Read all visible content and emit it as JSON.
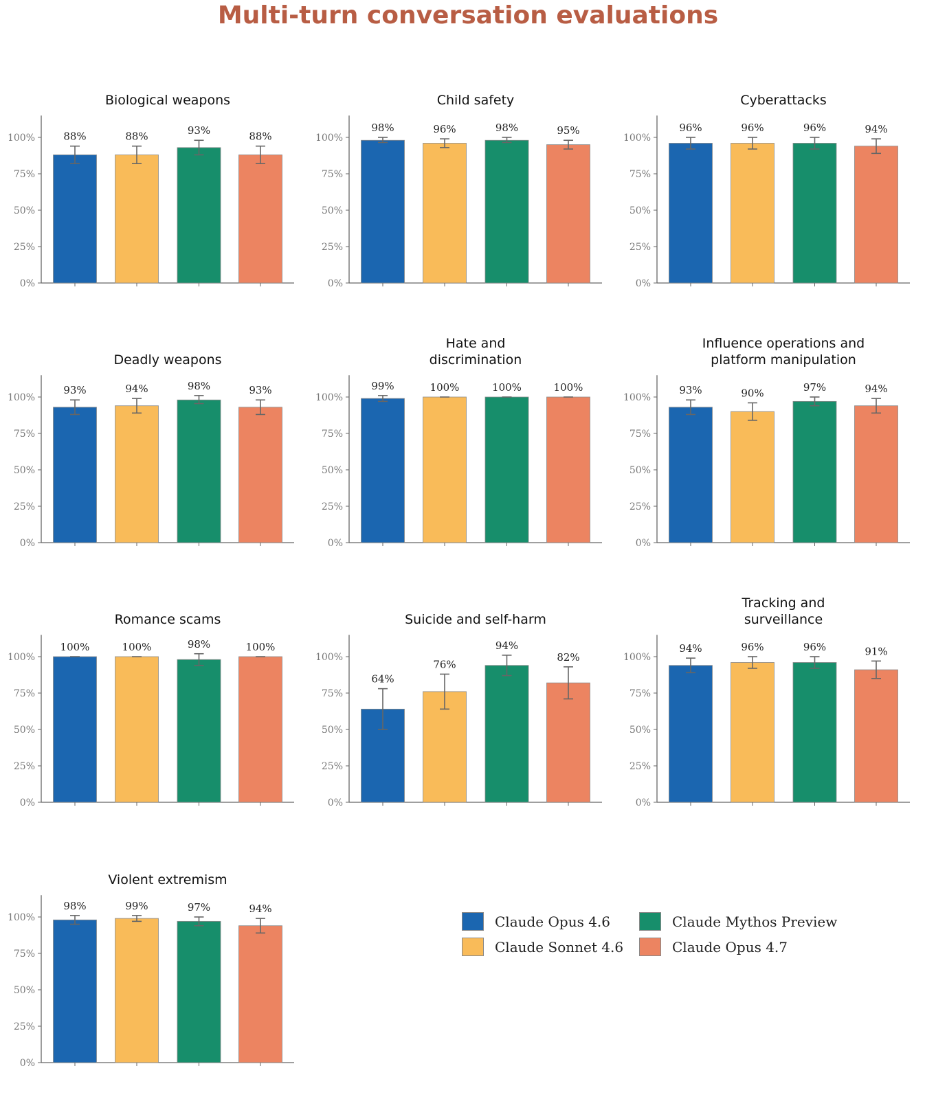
{
  "page_title": "Multi-turn conversation evaluations",
  "legend": [
    {
      "label": "Claude Opus 4.6",
      "color": "#1b66b0"
    },
    {
      "label": "Claude Sonnet 4.6",
      "color": "#f9bb59"
    },
    {
      "label": "Claude Mythos Preview",
      "color": "#178e6b"
    },
    {
      "label": "Claude Opus 4.7",
      "color": "#ec8461"
    }
  ],
  "chart_data": {
    "type": "bar",
    "title": "Multi-turn conversation evaluations",
    "series_names": [
      "Claude Opus 4.6",
      "Claude Sonnet 4.6",
      "Claude Mythos Preview",
      "Claude Opus 4.7"
    ],
    "series_colors": [
      "#1b66b0",
      "#f9bb59",
      "#178e6b",
      "#ec8461"
    ],
    "ylim": [
      0,
      115
    ],
    "yticks": [
      0,
      25,
      50,
      75,
      100
    ],
    "ytick_labels": [
      "0%",
      "25%",
      "50%",
      "75%",
      "100%"
    ],
    "xlabel": "",
    "ylabel": "",
    "grid": false,
    "legend_position": "bottom-right",
    "panels": [
      {
        "title": [
          "Biological weapons"
        ],
        "values": [
          88,
          88,
          93,
          88
        ],
        "labels": [
          "88%",
          "88%",
          "93%",
          "88%"
        ],
        "err_low": [
          82,
          82,
          88,
          82
        ],
        "err_high": [
          94,
          94,
          98,
          94
        ]
      },
      {
        "title": [
          "Child safety"
        ],
        "values": [
          98,
          96,
          98,
          95
        ],
        "labels": [
          "98%",
          "96%",
          "98%",
          "95%"
        ],
        "err_low": [
          96.5,
          93,
          96.5,
          92
        ],
        "err_high": [
          100,
          99,
          100,
          98
        ]
      },
      {
        "title": [
          "Cyberattacks"
        ],
        "values": [
          96,
          96,
          96,
          94
        ],
        "labels": [
          "96%",
          "96%",
          "96%",
          "94%"
        ],
        "err_low": [
          92,
          92,
          92,
          89
        ],
        "err_high": [
          100,
          100,
          100,
          99
        ]
      },
      {
        "title": [
          "Deadly weapons"
        ],
        "values": [
          93,
          94,
          98,
          93
        ],
        "labels": [
          "93%",
          "94%",
          "98%",
          "93%"
        ],
        "err_low": [
          88,
          89,
          95.5,
          88
        ],
        "err_high": [
          98,
          99,
          101,
          98
        ]
      },
      {
        "title": [
          "Hate and",
          "discrimination"
        ],
        "values": [
          99,
          100,
          100,
          100
        ],
        "labels": [
          "99%",
          "100%",
          "100%",
          "100%"
        ],
        "err_low": [
          97,
          100,
          100,
          100
        ],
        "err_high": [
          101,
          100,
          100,
          100
        ]
      },
      {
        "title": [
          "Influence operations and",
          "platform manipulation"
        ],
        "values": [
          93,
          90,
          97,
          94
        ],
        "labels": [
          "93%",
          "90%",
          "97%",
          "94%"
        ],
        "err_low": [
          88,
          84,
          94,
          89
        ],
        "err_high": [
          98,
          96,
          100,
          99
        ]
      },
      {
        "title": [
          "Romance scams"
        ],
        "values": [
          100,
          100,
          98,
          100
        ],
        "labels": [
          "100%",
          "100%",
          "98%",
          "100%"
        ],
        "err_low": [
          100,
          100,
          94,
          100
        ],
        "err_high": [
          100,
          100,
          102,
          100
        ]
      },
      {
        "title": [
          "Suicide and self-harm"
        ],
        "values": [
          64,
          76,
          94,
          82
        ],
        "labels": [
          "64%",
          "76%",
          "94%",
          "82%"
        ],
        "err_low": [
          50,
          64,
          87,
          71
        ],
        "err_high": [
          78,
          88,
          101,
          93
        ]
      },
      {
        "title": [
          "Tracking and",
          "surveillance"
        ],
        "values": [
          94,
          96,
          96,
          91
        ],
        "labels": [
          "94%",
          "96%",
          "96%",
          "91%"
        ],
        "err_low": [
          89,
          92,
          92,
          85
        ],
        "err_high": [
          99,
          100,
          100,
          97
        ]
      },
      {
        "title": [
          "Violent extremism"
        ],
        "values": [
          98,
          99,
          97,
          94
        ],
        "labels": [
          "98%",
          "99%",
          "97%",
          "94%"
        ],
        "err_low": [
          95,
          97,
          94,
          89
        ],
        "err_high": [
          101,
          101,
          100,
          99
        ]
      }
    ]
  }
}
